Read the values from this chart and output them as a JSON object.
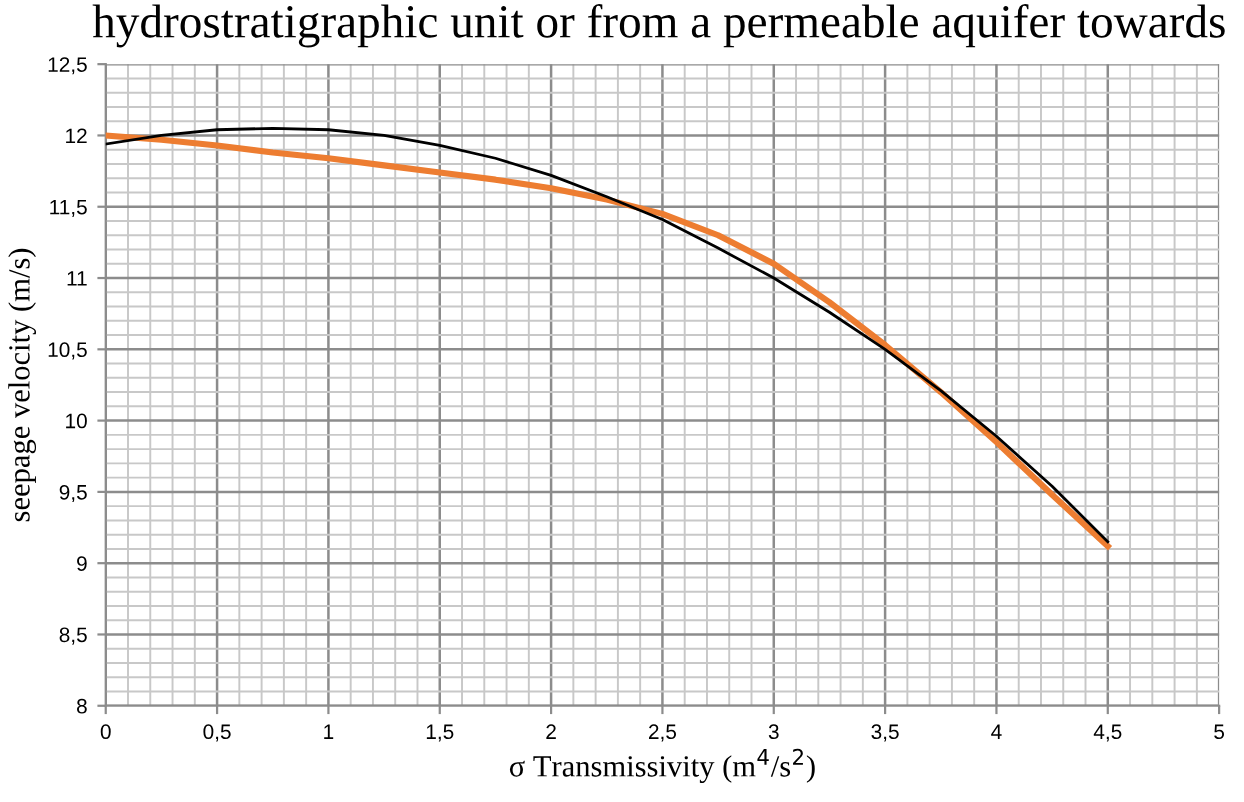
{
  "chart_data": {
    "type": "line",
    "title": "hydrostratigraphic unit or from a permeable aquifer towards",
    "xlabel": "σ Transmissivity (m$^{4}$/s$^{2}$)",
    "ylabel": "seepage velocity (m/s)",
    "x": [
      0,
      0.25,
      0.5,
      0.75,
      1,
      1.25,
      1.5,
      1.75,
      2,
      2.25,
      2.5,
      2.75,
      3,
      3.25,
      3.5,
      3.75,
      4,
      4.25,
      4.5
    ],
    "series": [
      {
        "color": "#ed7d31",
        "values": [
          12.0,
          11.97,
          11.93,
          11.88,
          11.84,
          11.79,
          11.74,
          11.69,
          11.63,
          11.55,
          11.45,
          11.3,
          11.1,
          10.83,
          10.53,
          10.2,
          9.85,
          9.48,
          9.12
        ]
      },
      {
        "color": "#000000",
        "values": [
          11.94,
          12.0,
          12.04,
          12.05,
          12.04,
          12.0,
          11.93,
          11.84,
          11.72,
          11.57,
          11.41,
          11.21,
          11.0,
          10.76,
          10.5,
          10.21,
          9.89,
          9.54,
          9.15
        ]
      }
    ],
    "xlim": [
      0,
      5
    ],
    "xticks": [
      0,
      {
        "value": 0.5,
        "label": "0,5"
      },
      1,
      {
        "value": 1.5,
        "label": "1,5"
      },
      2,
      {
        "value": 2.5,
        "label": "2,5"
      },
      3,
      {
        "value": 3.5,
        "label": "3,5"
      },
      4,
      {
        "value": 4.5,
        "label": "4,5"
      },
      5
    ],
    "ylim": [
      8,
      12.5
    ],
    "yticks": [
      8,
      {
        "value": 8.5,
        "label": "8,5"
      },
      9,
      {
        "value": 9.5,
        "label": "9,5"
      },
      10,
      {
        "value": 10.5,
        "label": "10,5"
      },
      11,
      {
        "value": 11.5,
        "label": "11,5"
      },
      12,
      {
        "value": 12.5,
        "label": "12,5"
      }
    ],
    "grid": true,
    "marker": "none",
    "line_style": "solid"
  }
}
